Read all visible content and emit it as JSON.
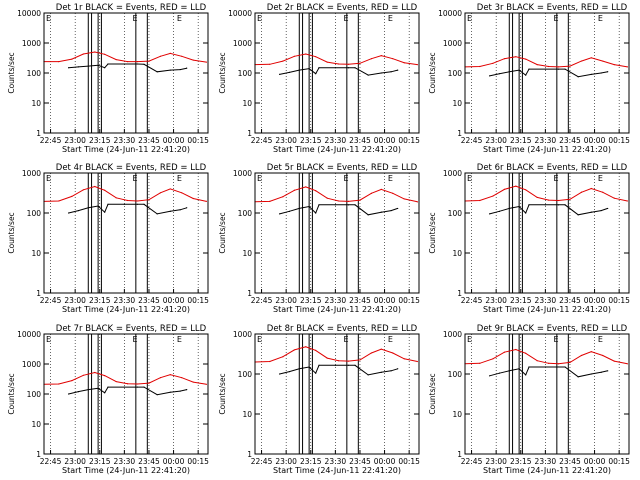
{
  "colors": {
    "events": "#000000",
    "lld": "#e00000",
    "axis": "#000000",
    "background": "#ffffff"
  },
  "chart_data": [
    {
      "type": "line",
      "title": "Det 1r BLACK = Events, RED = LLD",
      "xlabel": "Start Time (24-Jun-11 22:41:20)",
      "ylabel": "Counts/sec",
      "x_ticks": [
        "22:45",
        "23:00",
        "23:15",
        "23:30",
        "23:45",
        "00:00",
        "00:15"
      ],
      "y_ticks": [
        "1",
        "10",
        "100",
        "1000",
        "10000"
      ],
      "y_scale": "log",
      "ylim": [
        1,
        10000
      ],
      "grid": "dotted vertical at x ticks",
      "corner_labels": [
        "E",
        "E",
        "E"
      ],
      "series": [
        {
          "name": "LLD",
          "color": "red",
          "x": [
            "22:41",
            "22:50",
            "22:58",
            "23:05",
            "23:12",
            "23:18",
            "23:25",
            "23:32",
            "23:38",
            "23:45",
            "23:52",
            "23:58",
            "00:05",
            "00:12",
            "00:20"
          ],
          "values": [
            240,
            240,
            290,
            430,
            500,
            420,
            280,
            240,
            240,
            250,
            360,
            450,
            360,
            270,
            230
          ]
        },
        {
          "name": "Events",
          "color": "black",
          "x": [
            "22:56",
            "23:02",
            "23:08",
            "23:14",
            "23:18",
            "23:20",
            "23:30",
            "23:38",
            "23:42",
            "23:50",
            "23:58",
            "00:04",
            "00:08"
          ],
          "values": [
            150,
            160,
            170,
            180,
            150,
            200,
            200,
            200,
            195,
            110,
            125,
            130,
            145
          ]
        }
      ]
    },
    {
      "type": "line",
      "title": "Det 2r BLACK = Events, RED = LLD",
      "xlabel": "Start Time (24-Jun-11 22:41:20)",
      "ylabel": "Counts/sec",
      "x_ticks": [
        "22:45",
        "23:00",
        "23:15",
        "23:30",
        "23:45",
        "00:00",
        "00:15"
      ],
      "y_ticks": [
        "1",
        "10",
        "100",
        "1000",
        "10000"
      ],
      "y_scale": "log",
      "ylim": [
        1,
        10000
      ],
      "grid": "dotted vertical at x ticks",
      "corner_labels": [
        "E",
        "E",
        "E"
      ],
      "series": [
        {
          "name": "LLD",
          "color": "red",
          "x": [
            "22:41",
            "22:50",
            "22:58",
            "23:05",
            "23:12",
            "23:18",
            "23:25",
            "23:32",
            "23:38",
            "23:45",
            "23:52",
            "23:58",
            "00:05",
            "00:12",
            "00:20"
          ],
          "values": [
            190,
            195,
            250,
            360,
            430,
            350,
            230,
            200,
            195,
            210,
            300,
            380,
            300,
            220,
            190
          ]
        },
        {
          "name": "Events",
          "color": "black",
          "x": [
            "22:56",
            "23:02",
            "23:08",
            "23:14",
            "23:18",
            "23:20",
            "23:30",
            "23:38",
            "23:42",
            "23:50",
            "23:58",
            "00:04",
            "00:08"
          ],
          "values": [
            90,
            105,
            125,
            140,
            95,
            150,
            150,
            150,
            150,
            85,
            100,
            110,
            125
          ]
        }
      ]
    },
    {
      "type": "line",
      "title": "Det 3r BLACK = Events, RED = LLD",
      "xlabel": "Start Time (24-Jun-11 22:41:20)",
      "ylabel": "Counts/sec",
      "x_ticks": [
        "22:45",
        "23:00",
        "23:15",
        "23:30",
        "23:45",
        "00:00",
        "00:15"
      ],
      "y_ticks": [
        "1",
        "10",
        "100",
        "1000",
        "10000"
      ],
      "y_scale": "log",
      "ylim": [
        1,
        10000
      ],
      "grid": "dotted vertical at x ticks",
      "corner_labels": [
        "E",
        "E",
        "E"
      ],
      "series": [
        {
          "name": "LLD",
          "color": "red",
          "x": [
            "22:41",
            "22:50",
            "22:58",
            "23:05",
            "23:12",
            "23:18",
            "23:25",
            "23:32",
            "23:38",
            "23:45",
            "23:52",
            "23:58",
            "00:05",
            "00:12",
            "00:20"
          ],
          "values": [
            160,
            165,
            210,
            300,
            350,
            290,
            190,
            165,
            160,
            170,
            250,
            320,
            250,
            190,
            160
          ]
        },
        {
          "name": "Events",
          "color": "black",
          "x": [
            "22:56",
            "23:02",
            "23:08",
            "23:14",
            "23:18",
            "23:20",
            "23:30",
            "23:38",
            "23:42",
            "23:50",
            "23:58",
            "00:04",
            "00:08"
          ],
          "values": [
            80,
            95,
            110,
            125,
            85,
            135,
            135,
            135,
            135,
            75,
            90,
            100,
            110
          ]
        }
      ]
    },
    {
      "type": "line",
      "title": "Det 4r BLACK = Events, RED = LLD",
      "xlabel": "Start Time (24-Jun-11 22:41:20)",
      "ylabel": "Counts/sec",
      "x_ticks": [
        "22:45",
        "23:00",
        "23:15",
        "23:30",
        "23:45",
        "00:00",
        "00:15"
      ],
      "y_ticks": [
        "1",
        "10",
        "100",
        "1000"
      ],
      "y_scale": "log",
      "ylim": [
        1,
        1000
      ],
      "grid": "dotted vertical at x ticks",
      "corner_labels": [
        "E",
        "E",
        "E"
      ],
      "series": [
        {
          "name": "LLD",
          "color": "red",
          "x": [
            "22:41",
            "22:50",
            "22:58",
            "23:05",
            "23:12",
            "23:18",
            "23:25",
            "23:32",
            "23:38",
            "23:45",
            "23:52",
            "23:58",
            "00:05",
            "00:12",
            "00:20"
          ],
          "values": [
            195,
            200,
            260,
            380,
            460,
            370,
            240,
            205,
            200,
            215,
            320,
            400,
            320,
            230,
            195
          ]
        },
        {
          "name": "Events",
          "color": "black",
          "x": [
            "22:56",
            "23:02",
            "23:08",
            "23:14",
            "23:18",
            "23:20",
            "23:30",
            "23:38",
            "23:42",
            "23:50",
            "23:58",
            "00:04",
            "00:08"
          ],
          "values": [
            100,
            115,
            135,
            150,
            105,
            165,
            165,
            165,
            165,
            95,
            110,
            120,
            135
          ]
        }
      ]
    },
    {
      "type": "line",
      "title": "Det 5r BLACK = Events, RED = LLD",
      "xlabel": "Start Time (24-Jun-11 22:41:20)",
      "ylabel": "Counts/sec",
      "x_ticks": [
        "22:45",
        "23:00",
        "23:15",
        "23:30",
        "23:45",
        "00:00",
        "00:15"
      ],
      "y_ticks": [
        "1",
        "10",
        "100",
        "1000"
      ],
      "y_scale": "log",
      "ylim": [
        1,
        1000
      ],
      "grid": "dotted vertical at x ticks",
      "corner_labels": [
        "E",
        "E",
        "E"
      ],
      "series": [
        {
          "name": "LLD",
          "color": "red",
          "x": [
            "22:41",
            "22:50",
            "22:58",
            "23:05",
            "23:12",
            "23:18",
            "23:25",
            "23:32",
            "23:38",
            "23:45",
            "23:52",
            "23:58",
            "00:05",
            "00:12",
            "00:20"
          ],
          "values": [
            190,
            195,
            255,
            370,
            450,
            360,
            235,
            200,
            195,
            210,
            310,
            390,
            310,
            225,
            190
          ]
        },
        {
          "name": "Events",
          "color": "black",
          "x": [
            "22:56",
            "23:02",
            "23:08",
            "23:14",
            "23:18",
            "23:20",
            "23:30",
            "23:38",
            "23:42",
            "23:50",
            "23:58",
            "00:04",
            "00:08"
          ],
          "values": [
            95,
            110,
            130,
            145,
            100,
            160,
            160,
            160,
            160,
            90,
            105,
            115,
            130
          ]
        }
      ]
    },
    {
      "type": "line",
      "title": "Det 6r BLACK = Events, RED = LLD",
      "xlabel": "Start Time (24-Jun-11 22:41:20)",
      "ylabel": "Counts/sec",
      "x_ticks": [
        "22:45",
        "23:00",
        "23:15",
        "23:30",
        "23:45",
        "00:00",
        "00:15"
      ],
      "y_ticks": [
        "1",
        "10",
        "100",
        "1000"
      ],
      "y_scale": "log",
      "ylim": [
        1,
        1000
      ],
      "grid": "dotted vertical at x ticks",
      "corner_labels": [
        "E",
        "E",
        "E"
      ],
      "series": [
        {
          "name": "LLD",
          "color": "red",
          "x": [
            "22:41",
            "22:50",
            "22:58",
            "23:05",
            "23:12",
            "23:18",
            "23:25",
            "23:32",
            "23:38",
            "23:45",
            "23:52",
            "23:58",
            "00:05",
            "00:12",
            "00:20"
          ],
          "values": [
            200,
            205,
            265,
            390,
            470,
            380,
            245,
            210,
            205,
            220,
            330,
            410,
            330,
            235,
            200
          ]
        },
        {
          "name": "Events",
          "color": "black",
          "x": [
            "22:56",
            "23:02",
            "23:08",
            "23:14",
            "23:18",
            "23:20",
            "23:30",
            "23:38",
            "23:42",
            "23:50",
            "23:58",
            "00:04",
            "00:08"
          ],
          "values": [
            95,
            110,
            130,
            145,
            100,
            160,
            160,
            160,
            160,
            90,
            105,
            115,
            130
          ]
        }
      ]
    },
    {
      "type": "line",
      "title": "Det 7r BLACK = Events, RED = LLD",
      "xlabel": "Start Time (24-Jun-11 22:41:20)",
      "ylabel": "Counts/sec",
      "x_ticks": [
        "22:45",
        "23:00",
        "23:15",
        "23:30",
        "23:45",
        "00:00",
        "00:15"
      ],
      "y_ticks": [
        "1",
        "10",
        "100",
        "1000",
        "10000"
      ],
      "y_scale": "log",
      "ylim": [
        1,
        10000
      ],
      "grid": "dotted vertical at x ticks",
      "corner_labels": [
        "E",
        "E",
        "E"
      ],
      "series": [
        {
          "name": "LLD",
          "color": "red",
          "x": [
            "22:41",
            "22:50",
            "22:58",
            "23:05",
            "23:12",
            "23:18",
            "23:25",
            "23:32",
            "23:38",
            "23:45",
            "23:52",
            "23:58",
            "00:05",
            "00:12",
            "00:20"
          ],
          "values": [
            210,
            215,
            280,
            420,
            520,
            410,
            260,
            220,
            215,
            230,
            350,
            440,
            350,
            250,
            210
          ]
        },
        {
          "name": "Events",
          "color": "black",
          "x": [
            "22:56",
            "23:02",
            "23:08",
            "23:14",
            "23:18",
            "23:20",
            "23:30",
            "23:38",
            "23:42",
            "23:50",
            "23:58",
            "00:04",
            "00:08"
          ],
          "values": [
            100,
            120,
            140,
            155,
            110,
            170,
            170,
            170,
            170,
            95,
            115,
            125,
            140
          ]
        }
      ]
    },
    {
      "type": "line",
      "title": "Det 8r BLACK = Events, RED = LLD",
      "xlabel": "Start Time (24-Jun-11 22:41:20)",
      "ylabel": "Counts/sec",
      "x_ticks": [
        "22:45",
        "23:00",
        "23:15",
        "23:30",
        "23:45",
        "00:00",
        "00:15"
      ],
      "y_ticks": [
        "1",
        "10",
        "100",
        "1000"
      ],
      "y_scale": "log",
      "ylim": [
        1,
        1000
      ],
      "grid": "dotted vertical at x ticks",
      "corner_labels": [
        "E",
        "E",
        "E"
      ],
      "series": [
        {
          "name": "LLD",
          "color": "red",
          "x": [
            "22:41",
            "22:50",
            "22:58",
            "23:05",
            "23:12",
            "23:18",
            "23:25",
            "23:32",
            "23:38",
            "23:45",
            "23:52",
            "23:58",
            "00:05",
            "00:12",
            "00:20"
          ],
          "values": [
            200,
            205,
            270,
            400,
            480,
            390,
            250,
            215,
            210,
            225,
            335,
            420,
            335,
            240,
            205
          ]
        },
        {
          "name": "Events",
          "color": "black",
          "x": [
            "22:56",
            "23:02",
            "23:08",
            "23:14",
            "23:18",
            "23:20",
            "23:30",
            "23:38",
            "23:42",
            "23:50",
            "23:58",
            "00:04",
            "00:08"
          ],
          "values": [
            100,
            115,
            135,
            150,
            105,
            165,
            165,
            165,
            165,
            95,
            110,
            120,
            135
          ]
        }
      ]
    },
    {
      "type": "line",
      "title": "Det 9r BLACK = Events, RED = LLD",
      "xlabel": "Start Time (24-Jun-11 22:41:20)",
      "ylabel": "Counts/sec",
      "x_ticks": [
        "22:45",
        "23:00",
        "23:15",
        "23:30",
        "23:45",
        "00:00",
        "00:15"
      ],
      "y_ticks": [
        "1",
        "10",
        "100",
        "1000"
      ],
      "y_scale": "log",
      "ylim": [
        1,
        1000
      ],
      "grid": "dotted vertical at x ticks",
      "corner_labels": [
        "E",
        "E",
        "E"
      ],
      "series": [
        {
          "name": "LLD",
          "color": "red",
          "x": [
            "22:41",
            "22:50",
            "22:58",
            "23:05",
            "23:12",
            "23:18",
            "23:25",
            "23:32",
            "23:38",
            "23:45",
            "23:52",
            "23:58",
            "00:05",
            "00:12",
            "00:20"
          ],
          "values": [
            180,
            185,
            240,
            350,
            410,
            330,
            215,
            185,
            180,
            195,
            290,
            360,
            290,
            210,
            180
          ]
        },
        {
          "name": "Events",
          "color": "black",
          "x": [
            "22:56",
            "23:02",
            "23:08",
            "23:14",
            "23:18",
            "23:20",
            "23:30",
            "23:38",
            "23:42",
            "23:50",
            "23:58",
            "00:04",
            "00:08"
          ],
          "values": [
            90,
            105,
            120,
            135,
            95,
            150,
            150,
            150,
            150,
            85,
            100,
            110,
            120
          ]
        }
      ]
    }
  ],
  "markers": {
    "solid_vertical_lines": [
      "23:08",
      "23:10",
      "23:14",
      "23:16",
      "23:37",
      "23:44"
    ],
    "x_start": "22:41",
    "x_end": "00:21"
  }
}
